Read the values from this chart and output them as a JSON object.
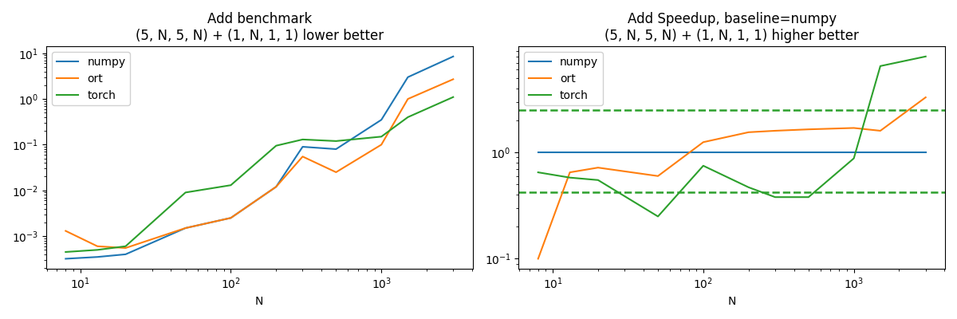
{
  "title1": "Add benchmark",
  "subtitle1": "(5, N, 5, N) + (1, N, 1, 1) lower better",
  "title2": "Add Speedup, baseline=numpy",
  "subtitle2": "(5, N, 5, N) + (1, N, 1, 1) higher better",
  "xlabel": "N",
  "colors": {
    "numpy": "#1f77b4",
    "ort": "#ff7f0e",
    "torch": "#2ca02c"
  },
  "N_values": [
    8,
    13,
    20,
    50,
    100,
    200,
    300,
    500,
    1000,
    1500,
    3000
  ],
  "bench_numpy": [
    0.00032,
    0.00035,
    0.0004,
    0.0015,
    0.0025,
    0.012,
    0.09,
    0.08,
    0.35,
    3.0,
    8.5
  ],
  "bench_ort": [
    0.0013,
    0.0006,
    0.00055,
    0.0015,
    0.0025,
    0.012,
    0.055,
    0.025,
    0.1,
    1.0,
    2.7
  ],
  "bench_torch": [
    0.00045,
    0.0005,
    0.0006,
    0.009,
    0.013,
    0.095,
    0.13,
    0.12,
    0.15,
    0.4,
    1.1
  ],
  "speed_numpy": [
    1.0,
    1.0,
    1.0,
    1.0,
    1.0,
    1.0,
    1.0,
    1.0,
    1.0,
    1.0,
    1.0
  ],
  "speed_ort": [
    0.1,
    0.65,
    0.72,
    0.6,
    1.25,
    1.55,
    1.6,
    1.65,
    1.7,
    1.6,
    3.3
  ],
  "speed_torch": [
    0.65,
    0.58,
    0.55,
    0.25,
    0.75,
    0.47,
    0.38,
    0.38,
    0.88,
    6.5,
    8.0
  ],
  "speedup_std_upper": 2.5,
  "speedup_std_lower": 0.42,
  "ylim_bench": [
    0.0002,
    20.0
  ],
  "ylim_speed": [
    0.15,
    12.0
  ]
}
